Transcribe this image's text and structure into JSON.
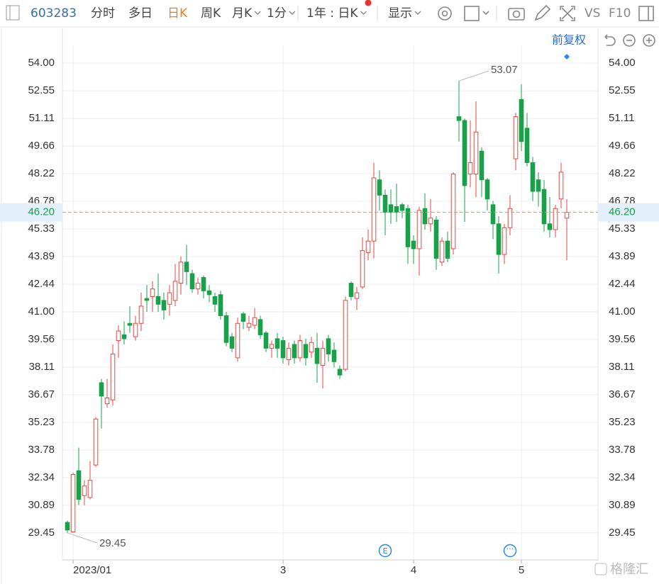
{
  "toolbar": {
    "code": "603283",
    "items": [
      "分时",
      "多日",
      "日K",
      "周K",
      "月K",
      "1分",
      "1年 : 日K",
      "显示"
    ],
    "active": 2,
    "vs": "VS",
    "f10": "F10",
    "adjust": "前复权"
  },
  "watermark": "格隆汇",
  "chart_data": {
    "type": "candlestick",
    "categories": [
      null,
      "2023/01",
      null,
      null,
      null,
      null,
      null,
      null,
      null,
      null,
      null,
      null,
      null,
      null,
      null,
      null,
      null,
      null,
      null,
      null,
      null,
      null,
      null,
      null,
      null,
      null,
      null,
      null,
      null,
      null,
      null,
      null,
      null,
      null,
      null,
      null,
      null,
      null,
      "3",
      null,
      null,
      null,
      null,
      null,
      null,
      null,
      null,
      null,
      null,
      null,
      null,
      null,
      null,
      null,
      null,
      null,
      null,
      null,
      null,
      null,
      null,
      "4",
      null,
      null,
      null,
      null,
      null,
      null,
      null,
      null,
      null,
      null,
      null,
      null,
      null,
      null,
      null,
      null,
      null,
      null,
      "5",
      null,
      null,
      null,
      null,
      null,
      null,
      null,
      null
    ],
    "open": [
      30.0,
      29.5,
      32.7,
      31.4,
      31.3,
      33.0,
      37.3,
      36.2,
      36.4,
      39.5,
      39.8,
      40.4,
      39.7,
      40.4,
      41.7,
      41.8,
      41.8,
      41.6,
      41.4,
      41.6,
      42.5,
      43.6,
      43.0,
      42.2,
      42.8,
      42.1,
      41.8,
      41.9,
      40.8,
      39.7,
      38.6,
      40.9,
      40.2,
      40.3,
      40.6,
      39.9,
      39.1,
      39.6,
      39.5,
      38.5,
      39.3,
      38.6,
      39.3,
      38.9,
      39.1,
      38.2,
      39.6,
      39.0,
      38.0,
      38.0,
      42.5,
      41.7,
      42.3,
      44.1,
      44.7,
      47.9,
      47.1,
      46.6,
      46.5,
      46.6,
      46.4,
      44.7,
      44.3,
      46.4,
      45.6,
      45.8,
      43.6,
      44.7,
      44.3,
      51.2,
      51.0,
      48.2,
      48.2,
      49.4,
      47.9,
      46.6,
      45.6,
      44.0,
      45.4,
      49.0,
      52.1,
      50.6,
      48.8,
      47.9,
      47.4,
      45.6,
      45.3,
      46.9,
      45.9
    ],
    "high": [
      30.1,
      32.6,
      33.9,
      32.2,
      33.2,
      35.5,
      37.5,
      37.5,
      39.3,
      40.3,
      40.5,
      41.3,
      40.8,
      42.0,
      42.4,
      42.6,
      43.0,
      42.0,
      42.4,
      43.5,
      43.9,
      44.5,
      43.2,
      42.8,
      42.9,
      42.4,
      42.0,
      42.1,
      41.0,
      39.9,
      40.7,
      41.0,
      40.8,
      41.2,
      40.8,
      40.0,
      39.5,
      39.9,
      39.7,
      39.4,
      39.5,
      39.8,
      39.6,
      39.7,
      39.9,
      39.5,
      39.8,
      39.4,
      38.2,
      41.8,
      42.6,
      42.3,
      44.9,
      45.3,
      48.8,
      48.4,
      47.4,
      47.4,
      47.7,
      46.7,
      46.6,
      45.0,
      46.5,
      47.2,
      46.9,
      46.0,
      44.9,
      45.2,
      48.3,
      53.07,
      51.1,
      51.0,
      52.0,
      49.6,
      48.0,
      46.8,
      46.0,
      45.6,
      47.1,
      51.4,
      52.9,
      51.4,
      49.1,
      48.3,
      47.9,
      47.0,
      46.6,
      48.8,
      46.9
    ],
    "low": [
      29.45,
      29.5,
      30.9,
      30.9,
      31.2,
      32.9,
      34.9,
      36.0,
      36.1,
      38.6,
      39.3,
      39.9,
      39.5,
      40.0,
      41.0,
      41.0,
      41.0,
      40.6,
      40.8,
      41.3,
      41.9,
      42.4,
      42.0,
      41.9,
      41.7,
      41.5,
      41.0,
      40.6,
      39.2,
      38.9,
      38.4,
      40.1,
      40.0,
      40.1,
      39.6,
      38.9,
      38.6,
      38.6,
      38.3,
      38.2,
      38.3,
      38.4,
      38.2,
      38.6,
      37.3,
      37.0,
      38.4,
      38.1,
      37.5,
      37.9,
      41.6,
      41.1,
      42.2,
      43.7,
      43.8,
      46.3,
      45.0,
      45.6,
      45.7,
      45.9,
      43.5,
      43.5,
      42.9,
      45.3,
      45.2,
      43.2,
      43.4,
      43.6,
      44.0,
      49.9,
      45.7,
      47.5,
      47.0,
      47.0,
      46.3,
      44.8,
      43.0,
      43.5,
      45.0,
      48.4,
      49.4,
      48.6,
      46.8,
      46.5,
      45.2,
      44.9,
      44.9,
      46.4,
      43.7
    ],
    "close": [
      29.6,
      32.5,
      31.2,
      31.9,
      32.2,
      35.4,
      36.6,
      36.5,
      38.8,
      40.0,
      39.6,
      40.3,
      40.4,
      41.3,
      41.6,
      42.2,
      41.4,
      41.1,
      42.0,
      42.6,
      43.6,
      43.1,
      42.2,
      42.5,
      42.1,
      41.9,
      41.4,
      40.8,
      39.4,
      39.1,
      40.4,
      40.5,
      40.4,
      40.7,
      39.8,
      39.1,
      39.3,
      39.1,
      38.6,
      39.1,
      38.6,
      39.5,
      38.6,
      39.4,
      38.3,
      39.1,
      38.8,
      38.4,
      37.7,
      41.6,
      41.8,
      42.0,
      44.2,
      44.7,
      48.0,
      47.1,
      46.2,
      46.2,
      46.2,
      46.3,
      44.4,
      44.3,
      46.3,
      45.6,
      45.9,
      43.8,
      44.7,
      43.8,
      48.2,
      51.0,
      47.6,
      48.8,
      50.4,
      47.9,
      46.9,
      45.6,
      44.0,
      45.4,
      46.4,
      51.2,
      49.9,
      48.8,
      47.3,
      47.3,
      45.6,
      45.3,
      46.4,
      48.3,
      46.2
    ],
    "up_color": "#e8473f",
    "down_color": "#19a04b",
    "ylim": [
      28.04,
      54.89
    ],
    "yticks": [
      {
        "value": 54.0,
        "label": "54.00"
      },
      52.55,
      51.11,
      49.66,
      48.22,
      46.78,
      45.33,
      43.89,
      42.44,
      {
        "value": 41.0,
        "label": "41.00"
      },
      39.56,
      38.11,
      36.67,
      35.23,
      33.78,
      32.34,
      30.89,
      29.45
    ],
    "price_line": {
      "value": 46.2,
      "label": "46.20",
      "color": "#e59a4a"
    },
    "grid": true
  }
}
